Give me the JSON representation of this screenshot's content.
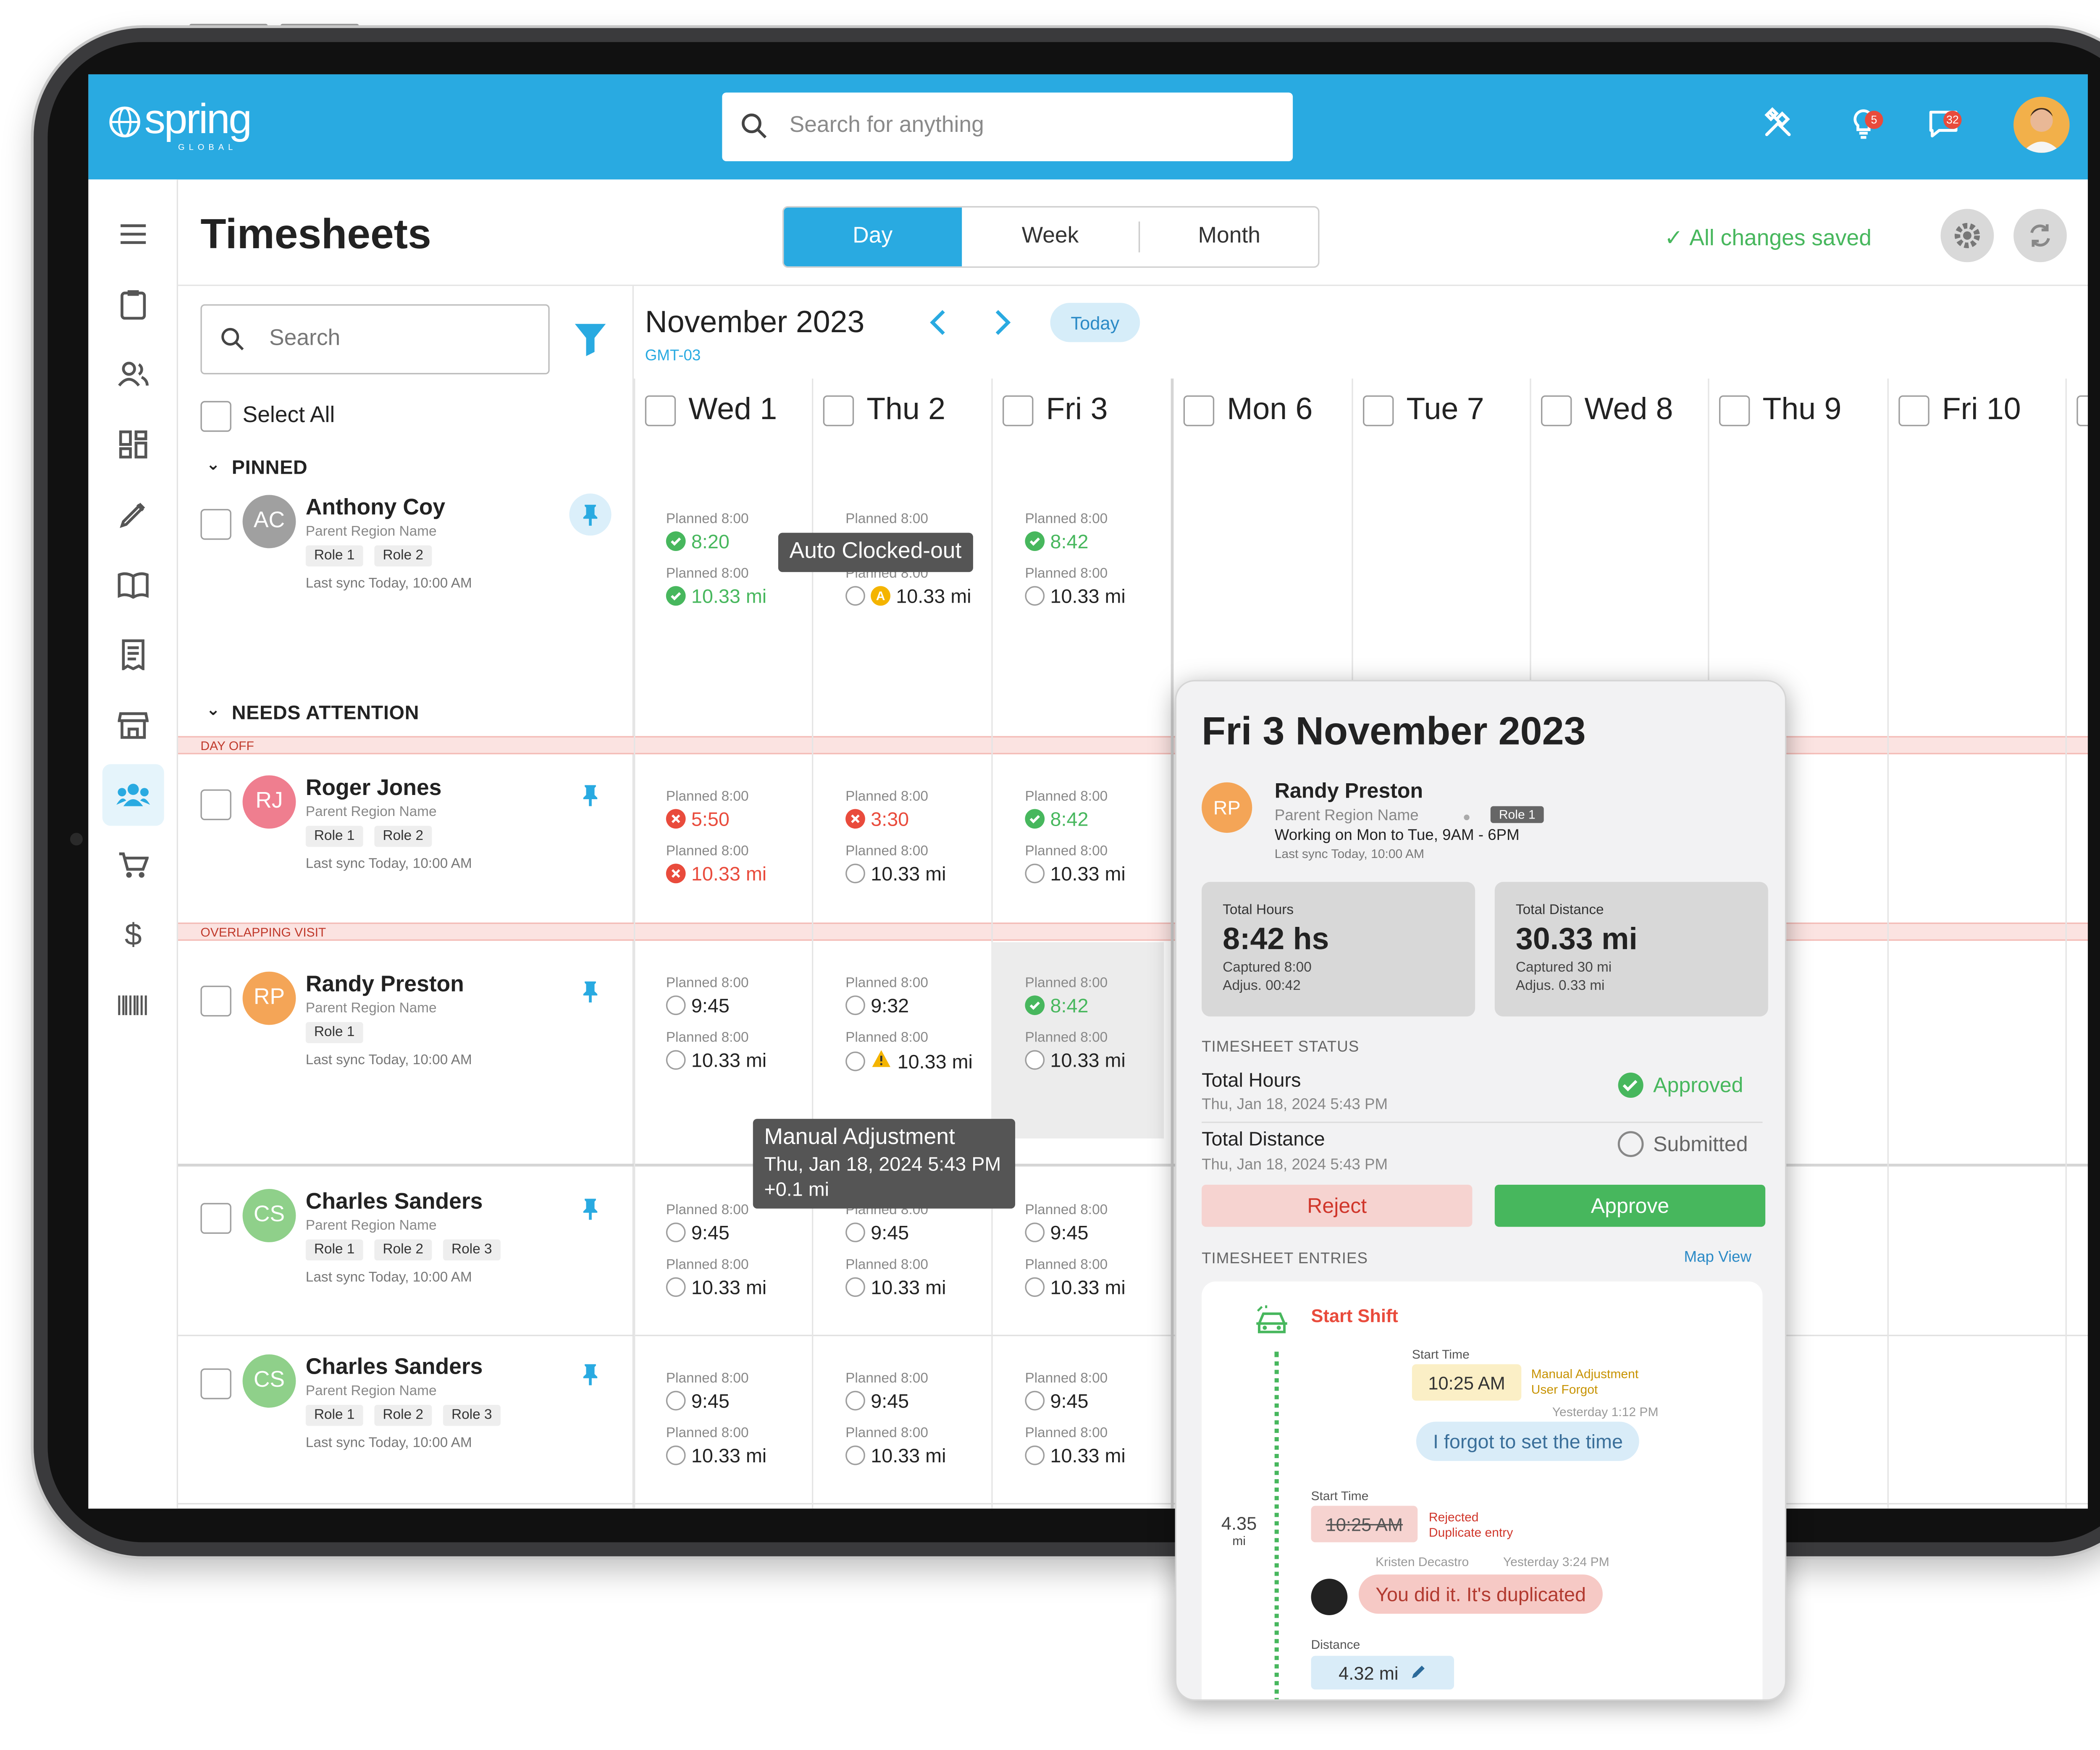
{
  "app": {
    "logo_text": "spring",
    "logo_sub": "GLOBAL"
  },
  "search": {
    "placeholder": "Search for anything"
  },
  "top_icons": {
    "tools": "tools-icon",
    "ideas": "lightbulb-icon",
    "ideas_count": "5",
    "messages": "chat-icon",
    "messages_count": "32"
  },
  "page": {
    "title": "Timesheets",
    "saved": "All changes saved"
  },
  "view_tabs": [
    "Day",
    "Week",
    "Month"
  ],
  "view_selected": "Day",
  "left": {
    "search_placeholder": "Search",
    "select_all": "Select All",
    "pinned": "PINNED",
    "needs_attention": "NEEDS ATTENTION"
  },
  "bands": {
    "day_off": "DAY OFF",
    "overlap": "OVERLAPPING VISIT"
  },
  "people": [
    {
      "initials": "AC",
      "name": "Anthony Coy",
      "region": "Parent Region Name",
      "roles": [
        "Role 1",
        "Role 2"
      ],
      "sync": "Last sync Today, 10:00 AM",
      "color": "#a0a0a0"
    },
    {
      "initials": "RJ",
      "name": "Roger Jones",
      "region": "Parent Region Name",
      "roles": [
        "Role 1",
        "Role 2"
      ],
      "sync": "Last sync Today, 10:00 AM",
      "color": "#ef7e8f"
    },
    {
      "initials": "RP",
      "name": "Randy Preston",
      "region": "Parent Region Name",
      "roles": [
        "Role 1"
      ],
      "sync": "Last sync Today, 10:00 AM",
      "color": "#f4a557"
    },
    {
      "initials": "CS",
      "name": "Charles Sanders",
      "region": "Parent Region Name",
      "roles": [
        "Role 1",
        "Role 2",
        "Role 3"
      ],
      "sync": "Last sync Today, 10:00 AM",
      "color": "#8fd08a"
    },
    {
      "initials": "CS",
      "name": "Charles Sanders",
      "region": "Parent Region Name",
      "roles": [
        "Role 1",
        "Role 2",
        "Role 3"
      ],
      "sync": "Last sync Today, 10:00 AM",
      "color": "#8fd08a"
    }
  ],
  "calendar": {
    "month": "November 2023",
    "tz": "GMT-03",
    "today": "Today",
    "days": [
      "Wed 1",
      "Thu 2",
      "Fri 3",
      "Mon 6",
      "Tue 7",
      "Wed 8",
      "Thu 9",
      "Fri 10"
    ]
  },
  "cells": [
    [
      {
        "p1": "Planned 8:00",
        "v1": "8:20",
        "s1": "ok",
        "p2": "Planned 8:00",
        "v2": "10.33 mi",
        "s2": "ok"
      },
      {
        "p1": "Planned 8:00",
        "v1": "",
        "s1": "",
        "p2": "Planned 8:00",
        "v2": "10.33 mi",
        "s2": "auto"
      },
      {
        "p1": "Planned 8:00",
        "v1": "8:42",
        "s1": "ok",
        "p2": "Planned 8:00",
        "v2": "10.33 mi",
        "s2": "empty"
      }
    ],
    [
      {
        "p1": "Planned 8:00",
        "v1": "5:50",
        "s1": "bad",
        "p2": "Planned 8:00",
        "v2": "10.33 mi",
        "s2": "bad"
      },
      {
        "p1": "Planned 8:00",
        "v1": "3:30",
        "s1": "bad",
        "p2": "Planned 8:00",
        "v2": "10.33 mi",
        "s2": "empty"
      },
      {
        "p1": "Planned 8:00",
        "v1": "8:42",
        "s1": "ok",
        "p2": "Planned 8:00",
        "v2": "10.33 mi",
        "s2": "empty"
      }
    ],
    [
      {
        "p1": "Planned 8:00",
        "v1": "9:45",
        "s1": "empty",
        "p2": "Planned 8:00",
        "v2": "10.33 mi",
        "s2": "empty"
      },
      {
        "p1": "Planned 8:00",
        "v1": "9:32",
        "s1": "empty",
        "p2": "Planned 8:00",
        "v2": "10.33 mi",
        "s2": "warn"
      },
      {
        "p1": "Planned 8:00",
        "v1": "8:42",
        "s1": "ok",
        "p2": "Planned 8:00",
        "v2": "10.33 mi",
        "s2": "empty"
      }
    ],
    [
      {
        "p1": "Planned 8:00",
        "v1": "9:45",
        "s1": "empty",
        "p2": "Planned 8:00",
        "v2": "10.33 mi",
        "s2": "empty"
      },
      {
        "p1": "Planned 8:00",
        "v1": "9:45",
        "s1": "empty",
        "p2": "Planned 8:00",
        "v2": "10.33 mi",
        "s2": "empty"
      },
      {
        "p1": "Planned 8:00",
        "v1": "9:45",
        "s1": "empty",
        "p2": "Planned 8:00",
        "v2": "10.33 mi",
        "s2": "empty"
      }
    ],
    [
      {
        "p1": "Planned 8:00",
        "v1": "9:45",
        "s1": "empty",
        "p2": "Planned 8:00",
        "v2": "10.33 mi",
        "s2": "empty"
      },
      {
        "p1": "Planned 8:00",
        "v1": "9:45",
        "s1": "empty",
        "p2": "Planned 8:00",
        "v2": "10.33 mi",
        "s2": "empty"
      },
      {
        "p1": "Planned 8:00",
        "v1": "9:45",
        "s1": "empty",
        "p2": "Planned 8:00",
        "v2": "10.33 mi",
        "s2": "empty"
      }
    ]
  ],
  "tooltips": {
    "auto": "Auto Clocked-out",
    "manual_title": "Manual Adjustment",
    "manual_date": "Thu, Jan 18, 2024 5:43 PM",
    "manual_delta": "+0.1 mi"
  },
  "panel": {
    "title": "Fri 3 November 2023",
    "person": {
      "initials": "RP",
      "name": "Randy Preston",
      "region": "Parent Region Name",
      "role": "Role 1",
      "working": "Working on Mon to Tue, 9AM - 6PM",
      "sync": "Last sync Today, 10:00 AM"
    },
    "hours": {
      "label": "Total Hours",
      "value": "8:42 hs",
      "captured": "Captured 8:00",
      "adjust": "Adjus. 00:42"
    },
    "distance": {
      "label": "Total Distance",
      "value": "30.33 mi",
      "captured": "Captured 30 mi",
      "adjust": "Adjus. 0.33 mi"
    },
    "status_title": "TIMESHEET STATUS",
    "status_rows": [
      {
        "label": "Total Hours",
        "date": "Thu, Jan 18, 2024 5:43 PM",
        "status": "Approved"
      },
      {
        "label": "Total Distance",
        "date": "Thu, Jan 18, 2024 5:43 PM",
        "status": "Submitted"
      }
    ],
    "reject": "Reject",
    "approve": "Approve",
    "entries_title": "TIMESHEET ENTRIES",
    "map_view": "Map View",
    "entries": {
      "shift": "Start Shift",
      "start_time_label": "Start Time",
      "time1": "10:25 AM",
      "manual_label": "Manual Adjustment",
      "manual_reason": "User Forgot",
      "msg1_meta": "Yesterday 1:12 PM",
      "msg1": "I forgot to set the time",
      "start_time_label2": "Start Time",
      "time2": "10:25 AM",
      "rejected_label": "Rejected",
      "rejected_reason": "Duplicate entry",
      "msg2_author": "Kristen Decastro",
      "msg2_meta": "Yesterday 3:24 PM",
      "msg2": "You did it. It's duplicated",
      "distance_label": "Distance",
      "distance_value": "4.32 mi",
      "leg_distance": "4.35",
      "leg_unit": "mi"
    }
  },
  "colors": {
    "brand": "#29aae1",
    "success": "#47b75d",
    "danger": "#e94b3c",
    "warning": "#f4b400"
  }
}
